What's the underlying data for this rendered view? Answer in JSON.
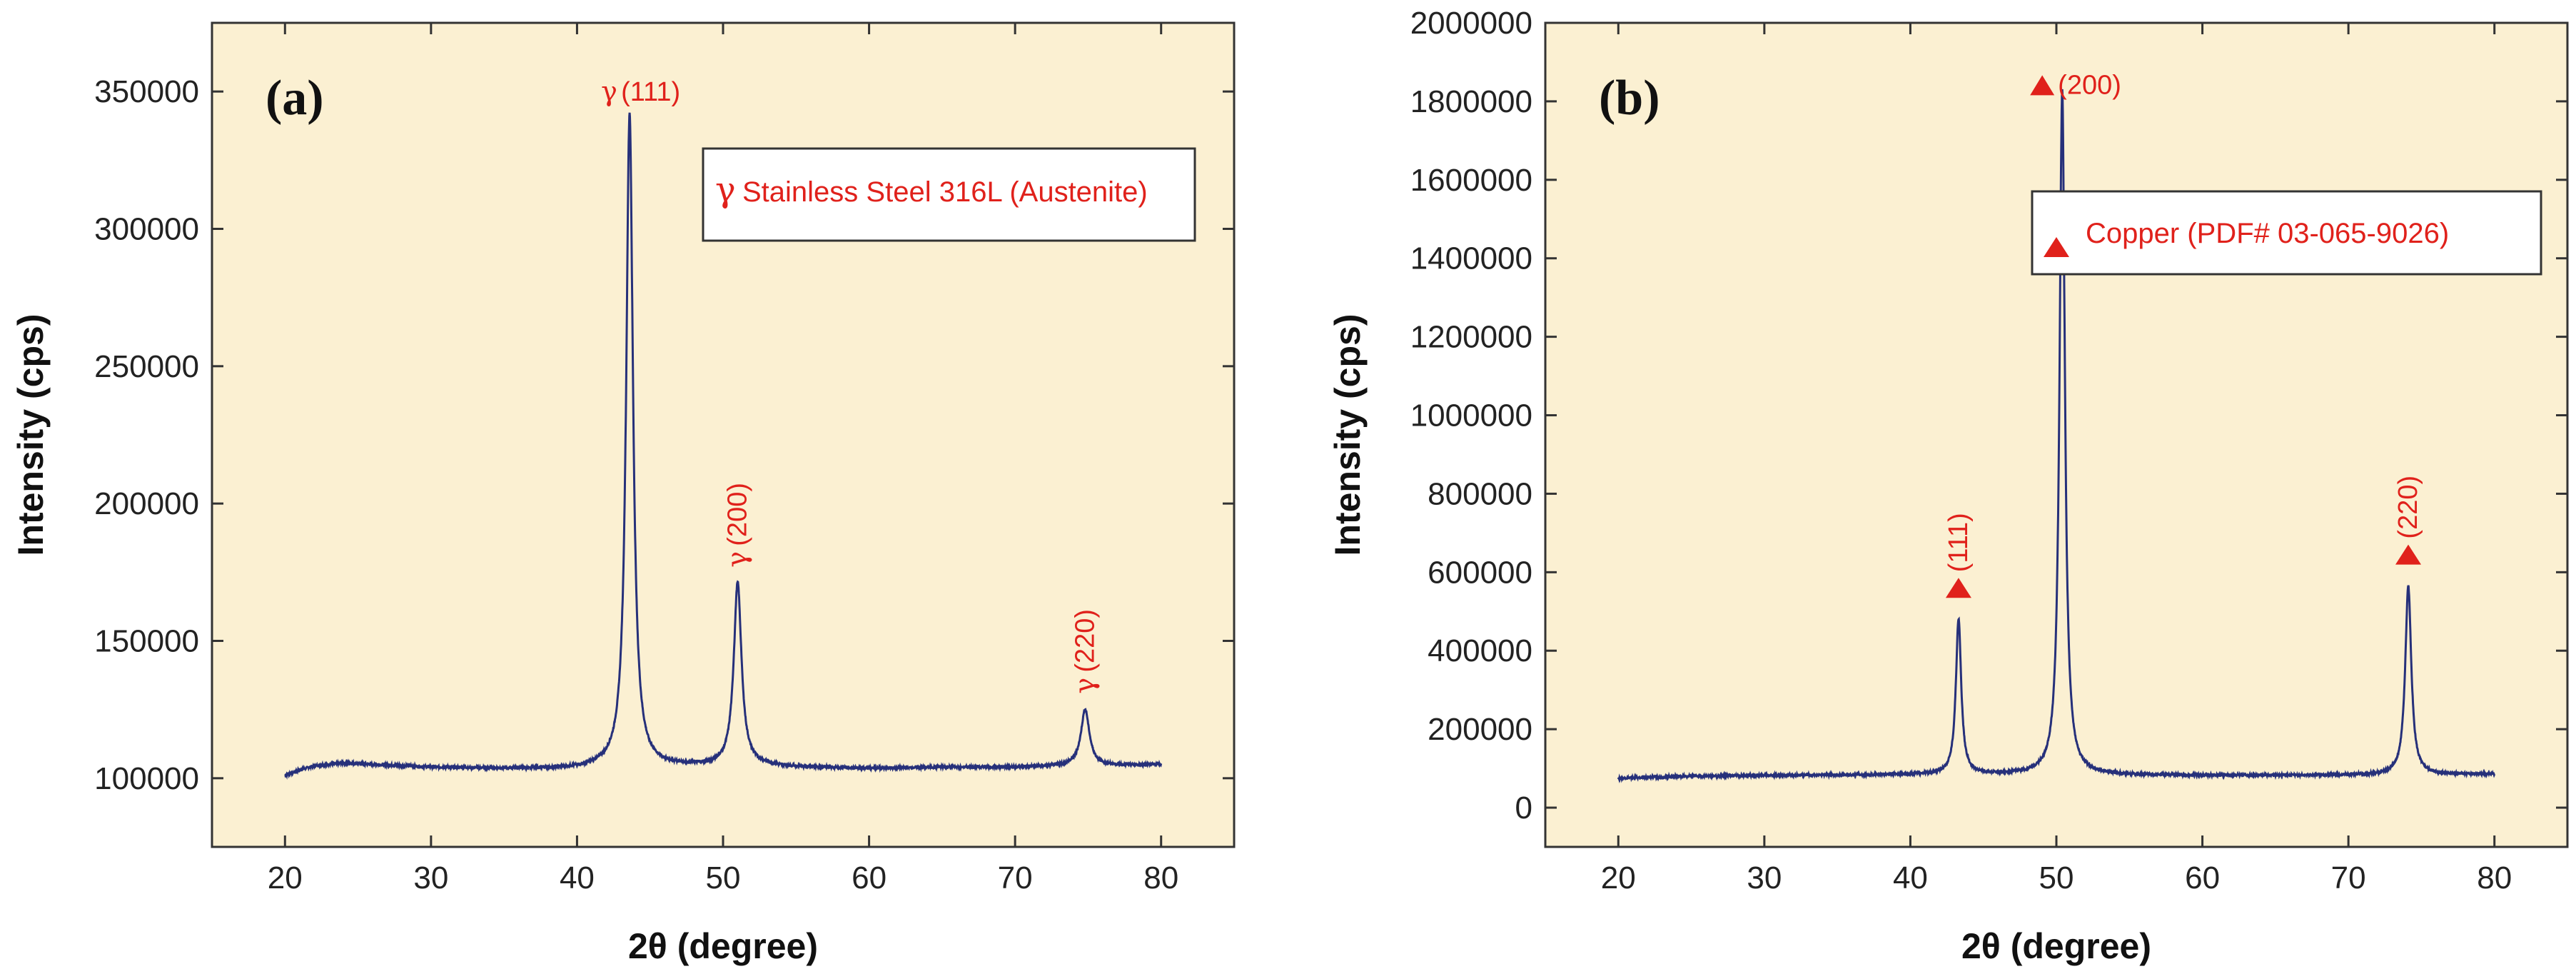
{
  "chart_data": [
    {
      "type": "line",
      "panel_label": "(a)",
      "xlabel": "2θ (degree)",
      "ylabel": "Intensity (cps)",
      "xlim": [
        15,
        85
      ],
      "ylim": [
        75000,
        375000
      ],
      "x_ticks": [
        20,
        30,
        40,
        50,
        60,
        70,
        80
      ],
      "y_ticks": [
        100000,
        150000,
        200000,
        250000,
        300000,
        350000
      ],
      "legend": {
        "symbol": "γ",
        "text": "Stainless Steel 316L (Austenite)",
        "position": "top-right"
      },
      "line_color": "#26307a",
      "background_color": "#fbf0d2",
      "label_color": "#e0211b",
      "baseline": [
        [
          20,
          101000
        ],
        [
          21,
          103000
        ],
        [
          22,
          104500
        ],
        [
          24,
          105500
        ],
        [
          26,
          105000
        ],
        [
          30,
          104000
        ],
        [
          35,
          103500
        ],
        [
          40,
          103500
        ],
        [
          42,
          104000
        ]
      ],
      "tail": [
        [
          52.2,
          104500
        ],
        [
          55,
          104000
        ],
        [
          60,
          103500
        ],
        [
          65,
          104000
        ],
        [
          70,
          104000
        ],
        [
          73.5,
          104500
        ],
        [
          76,
          104500
        ],
        [
          80,
          105000
        ]
      ],
      "peaks": [
        {
          "x": 43.6,
          "y": 342000,
          "label_symbol": "γ",
          "label": "(111)",
          "width": 0.28
        },
        {
          "x": 51.0,
          "y": 171000,
          "label_symbol": "γ",
          "label": "(200)",
          "width": 0.32
        },
        {
          "x": 74.8,
          "y": 125000,
          "label_symbol": "γ",
          "label": "(220)",
          "width": 0.35
        }
      ]
    },
    {
      "type": "line",
      "panel_label": "(b)",
      "xlabel": "2θ (degree)",
      "ylabel": "Intensity (cps)",
      "xlim": [
        15,
        85
      ],
      "ylim": [
        -100000,
        2000000
      ],
      "x_ticks": [
        20,
        30,
        40,
        50,
        60,
        70,
        80
      ],
      "y_ticks": [
        0,
        200000,
        400000,
        600000,
        800000,
        1000000,
        1200000,
        1400000,
        1600000,
        1800000,
        2000000
      ],
      "legend": {
        "symbol": "triangle",
        "text": "Copper (PDF# 03-065-9026)",
        "position": "top-right"
      },
      "line_color": "#26307a",
      "background_color": "#fbf0d2",
      "label_color": "#e0211b",
      "baseline": [
        [
          20,
          75000
        ],
        [
          25,
          80000
        ],
        [
          30,
          82000
        ],
        [
          35,
          83000
        ],
        [
          40,
          84000
        ],
        [
          42.5,
          85000
        ]
      ],
      "tail": [
        [
          52,
          84000
        ],
        [
          55,
          83000
        ],
        [
          60,
          82000
        ],
        [
          65,
          82000
        ],
        [
          70,
          83000
        ],
        [
          72.8,
          83000
        ],
        [
          75.5,
          84000
        ],
        [
          80,
          85000
        ]
      ],
      "peaks": [
        {
          "x": 43.3,
          "y": 480000,
          "label_symbol": "triangle",
          "label": "(111)",
          "width": 0.22
        },
        {
          "x": 50.4,
          "y": 1830000,
          "label_symbol": "triangle",
          "label": "(200)",
          "width": 0.22
        },
        {
          "x": 74.1,
          "y": 565000,
          "label_symbol": "triangle",
          "label": "(220)",
          "width": 0.25
        }
      ]
    }
  ]
}
